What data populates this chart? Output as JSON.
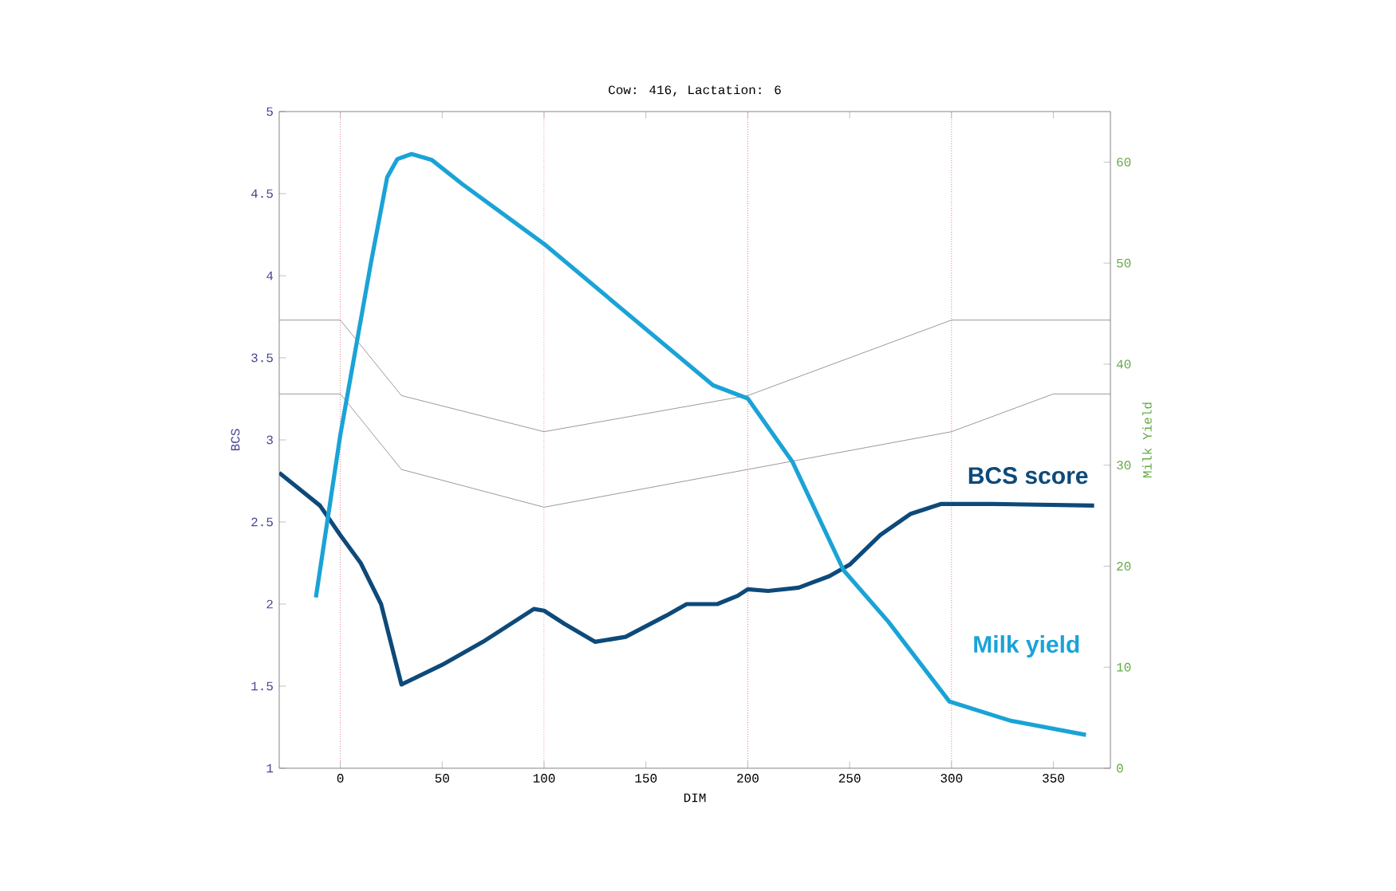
{
  "chart_data": {
    "type": "line",
    "title": "Cow: 416, Lactation: 6",
    "xlabel": "DIM",
    "ylabel": "BCS",
    "y2label": "Milk Yield",
    "xlim": [
      -30,
      378
    ],
    "xticks": [
      0,
      50,
      100,
      150,
      200,
      250,
      300,
      350
    ],
    "ylim": [
      1,
      5
    ],
    "yticks": [
      1,
      1.5,
      2,
      2.5,
      3,
      3.5,
      4,
      4.5,
      5
    ],
    "y2lim": [
      0,
      65
    ],
    "y2ticks": [
      0,
      10,
      20,
      30,
      40,
      50,
      60
    ],
    "line_style": "solid",
    "ref_lines": [
      {
        "axis": "x",
        "value": 0,
        "color": "#e07a8a",
        "line_style": "dotted"
      },
      {
        "axis": "x",
        "value": 100,
        "color": "#e07a8a",
        "line_style": "dotted"
      },
      {
        "axis": "x",
        "value": 200,
        "color": "#e07a8a",
        "line_style": "dotted"
      },
      {
        "axis": "x",
        "value": 300,
        "color": "#e07a8a",
        "line_style": "dotted"
      }
    ],
    "series": [
      {
        "color": "#9a9a9a",
        "axis": "y",
        "x": [
          -30,
          0,
          30,
          100,
          200,
          300,
          378
        ],
        "values": [
          3.73,
          3.73,
          3.27,
          3.05,
          3.27,
          3.73,
          3.73
        ]
      },
      {
        "color": "#9a9a9a",
        "axis": "y",
        "x": [
          -30,
          0,
          30,
          100,
          200,
          300,
          350,
          378
        ],
        "values": [
          3.28,
          3.28,
          2.82,
          2.59,
          2.82,
          3.05,
          3.28,
          3.28
        ]
      },
      {
        "name": "BCS score",
        "color": "#0d4a7a",
        "axis": "y",
        "x": [
          -30,
          -10,
          0,
          10,
          20,
          30,
          50,
          70,
          95,
          100,
          110,
          125,
          140,
          160,
          170,
          185,
          195,
          200,
          210,
          225,
          240,
          250,
          265,
          280,
          295,
          320,
          370
        ],
        "values": [
          2.8,
          2.6,
          2.42,
          2.25,
          2.0,
          1.51,
          1.63,
          1.77,
          1.97,
          1.96,
          1.88,
          1.77,
          1.8,
          1.93,
          2.0,
          2.0,
          2.05,
          2.09,
          2.08,
          2.1,
          2.17,
          2.24,
          2.42,
          2.55,
          2.61,
          2.61,
          2.6
        ]
      },
      {
        "name": "Milk yield",
        "color": "#1aa3d6",
        "axis": "y2",
        "x": [
          -12,
          0,
          15,
          23,
          28,
          35,
          45,
          60,
          100,
          183,
          200,
          222,
          247,
          269,
          299,
          329,
          366
        ],
        "values": [
          16.9,
          33,
          50,
          58.5,
          60.3,
          60.8,
          60.2,
          57.8,
          51.9,
          37.9,
          36.6,
          30.3,
          19.6,
          14.5,
          6.6,
          4.7,
          3.3
        ]
      }
    ]
  }
}
